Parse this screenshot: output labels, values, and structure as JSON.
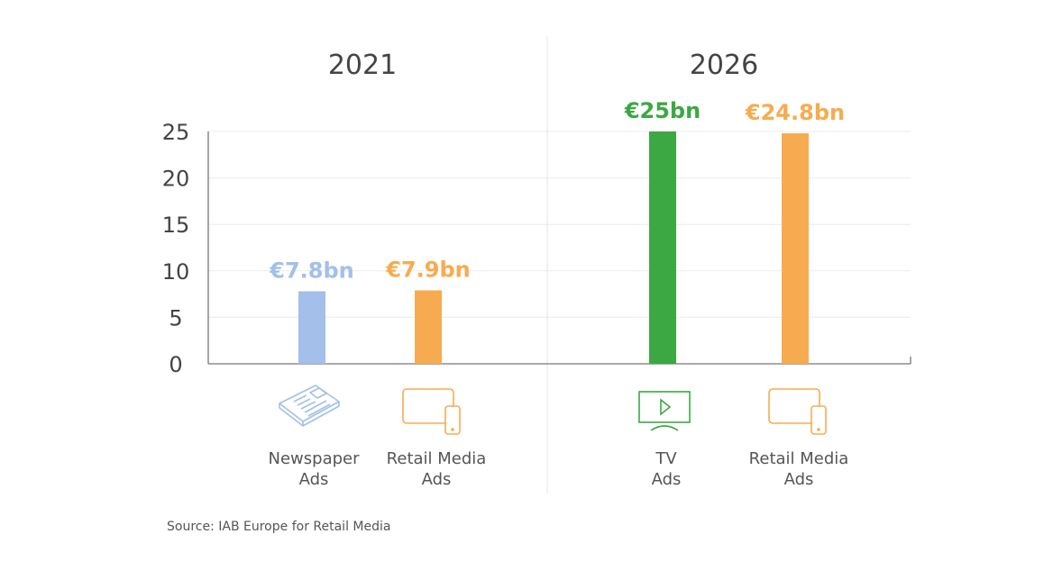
{
  "chart_data": {
    "type": "bar",
    "ylim": [
      0,
      25
    ],
    "yticks": [
      0,
      5,
      10,
      15,
      20,
      25
    ],
    "grid": true,
    "panels": [
      {
        "title": "2021",
        "categories": [
          {
            "line1": "Newspaper",
            "line2": "Ads",
            "value": 7.8,
            "value_label": "€7.8bn",
            "color": "#a3bfea",
            "icon": "newspaper-icon"
          },
          {
            "line1": "Retail Media",
            "line2": "Ads",
            "value": 7.9,
            "value_label": "€7.9bn",
            "color": "#f7ab50",
            "icon": "devices-icon"
          }
        ]
      },
      {
        "title": "2026",
        "categories": [
          {
            "line1": "TV",
            "line2": "Ads",
            "value": 25,
            "value_label": "€25bn",
            "color": "#3ca843",
            "icon": "tv-icon"
          },
          {
            "line1": "Retail Media",
            "line2": "Ads",
            "value": 24.8,
            "value_label": "€24.8bn",
            "color": "#f7ab50",
            "icon": "devices-icon"
          }
        ]
      }
    ]
  },
  "source": "Source: IAB Europe for Retail Media"
}
